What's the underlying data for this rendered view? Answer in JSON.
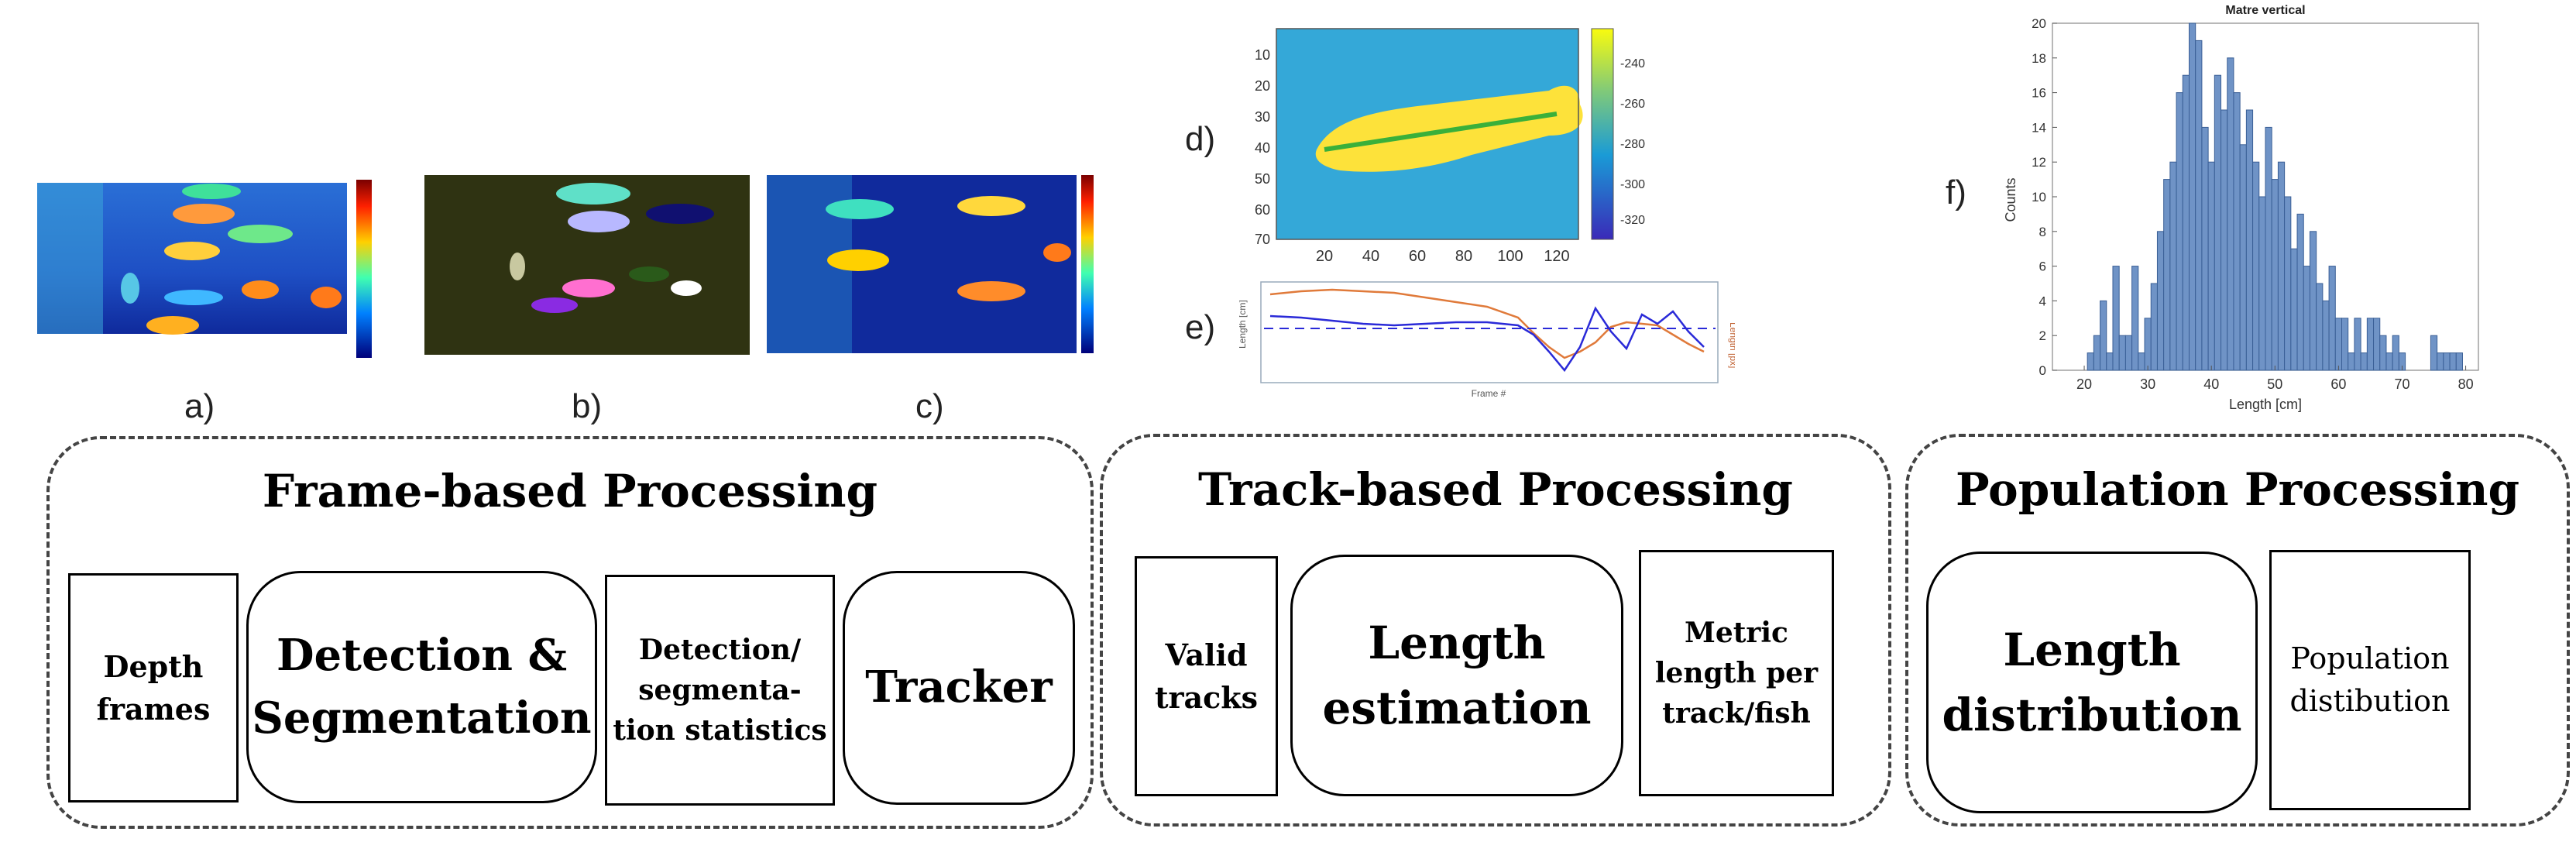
{
  "panels": {
    "a": "a)",
    "b": "b)",
    "c": "c)",
    "d": "d)",
    "e": "e)",
    "f": "f)"
  },
  "groups": [
    {
      "title": "Frame-based Processing",
      "boxes": [
        {
          "label": "Depth frames",
          "shape": "rect"
        },
        {
          "label": "Detection & Segmentation",
          "shape": "rounded"
        },
        {
          "label": "Detection/ segmenta-tion statistics",
          "shape": "rect"
        },
        {
          "label": "Tracker",
          "shape": "rounded"
        }
      ]
    },
    {
      "title": "Track-based Processing",
      "boxes": [
        {
          "label": "Valid tracks",
          "shape": "rect"
        },
        {
          "label": "Length estimation",
          "shape": "rounded"
        },
        {
          "label": "Metric length per track/fish",
          "shape": "rect"
        }
      ]
    },
    {
      "title": "Population Processing",
      "boxes": [
        {
          "label": "Length distribution",
          "shape": "rounded"
        },
        {
          "label": "Population distibution",
          "shape": "rect"
        }
      ]
    }
  ],
  "plot_d": {
    "y_ticks": [
      "10",
      "20",
      "30",
      "40",
      "50",
      "60",
      "70"
    ],
    "x_ticks": [
      "20",
      "40",
      "60",
      "80",
      "100",
      "120"
    ],
    "colorbar_ticks": [
      "-240",
      "-260",
      "-280",
      "-300",
      "-320"
    ]
  },
  "plot_e": {
    "xlabel": "Frame #",
    "ylabel_left": "Length [cm]",
    "ylabel_right": "Length [px]"
  },
  "chart_data": {
    "type": "bar",
    "title": "Matre vertical",
    "xlabel": "Length [cm]",
    "ylabel": "Counts",
    "xlim": [
      15,
      82
    ],
    "ylim": [
      0,
      20
    ],
    "x_ticks": [
      20,
      30,
      40,
      50,
      60,
      70,
      80
    ],
    "y_ticks": [
      0,
      2,
      4,
      6,
      8,
      10,
      12,
      14,
      16,
      18,
      20
    ],
    "bin_width": 1,
    "x": [
      21,
      22,
      23,
      24,
      25,
      26,
      27,
      28,
      29,
      30,
      31,
      32,
      33,
      34,
      35,
      36,
      37,
      38,
      39,
      40,
      41,
      42,
      43,
      44,
      45,
      46,
      47,
      48,
      49,
      50,
      51,
      52,
      53,
      54,
      55,
      56,
      57,
      58,
      59,
      60,
      61,
      62,
      63,
      64,
      65,
      66,
      67,
      68,
      69,
      70,
      71,
      72,
      73,
      74,
      75,
      76,
      77,
      78,
      79
    ],
    "values": [
      1,
      2,
      4,
      1,
      6,
      2,
      2,
      6,
      1,
      3,
      5,
      8,
      11,
      12,
      16,
      17,
      20,
      19,
      14,
      12,
      17,
      15,
      18,
      16,
      13,
      15,
      12,
      10,
      14,
      11,
      12,
      10,
      7,
      9,
      6,
      8,
      5,
      4,
      6,
      3,
      3,
      1,
      3,
      1,
      3,
      3,
      2,
      1,
      2,
      1,
      0,
      0,
      0,
      0,
      2,
      1,
      1,
      1,
      1
    ]
  }
}
